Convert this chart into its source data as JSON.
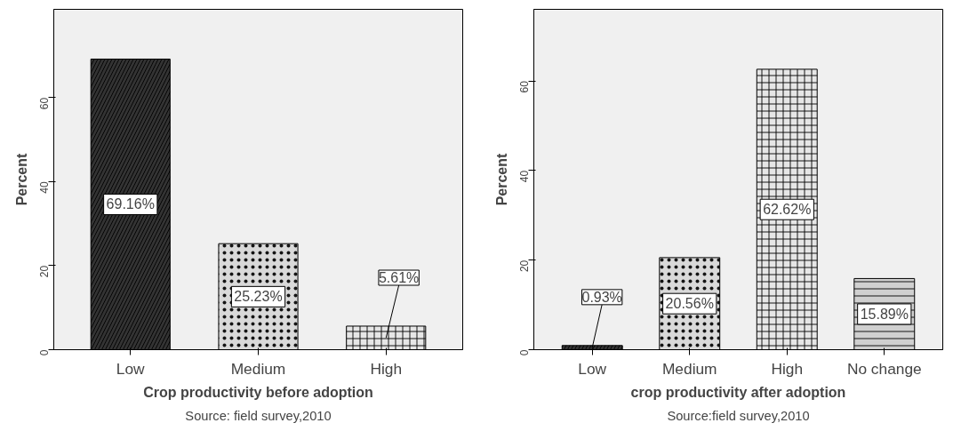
{
  "chart_data": [
    {
      "type": "bar",
      "categories": [
        "Low",
        "Medium",
        "High"
      ],
      "values": [
        69.16,
        25.23,
        5.61
      ],
      "value_labels": [
        "69.16%",
        "25.23%",
        "5.61%"
      ],
      "colors": [
        "#333333",
        "#d9d9d9",
        "#e6e6e6"
      ],
      "xlabel": "Crop productivity before adoption",
      "ylabel": "Percent",
      "ylim": [
        0,
        81
      ],
      "yticks": [
        0,
        20,
        40,
        60
      ],
      "grid": false,
      "annotations": [
        "Source: field survey,2010"
      ]
    },
    {
      "type": "bar",
      "categories": [
        "Low",
        "Medium",
        "High",
        "No change"
      ],
      "values": [
        0.93,
        20.56,
        62.62,
        15.89
      ],
      "value_labels": [
        "0.93%",
        "20.56%",
        "62.62%",
        "15.89%"
      ],
      "colors": [
        "#333333",
        "#d9d9d9",
        "#e6e6e6",
        "#d0d0d0"
      ],
      "xlabel": "crop productivity after adoption",
      "ylabel": "Percent",
      "ylim": [
        0,
        76
      ],
      "yticks": [
        0,
        20,
        40,
        60
      ],
      "grid": false,
      "annotations": [
        "Source:field survey,2010"
      ]
    }
  ]
}
